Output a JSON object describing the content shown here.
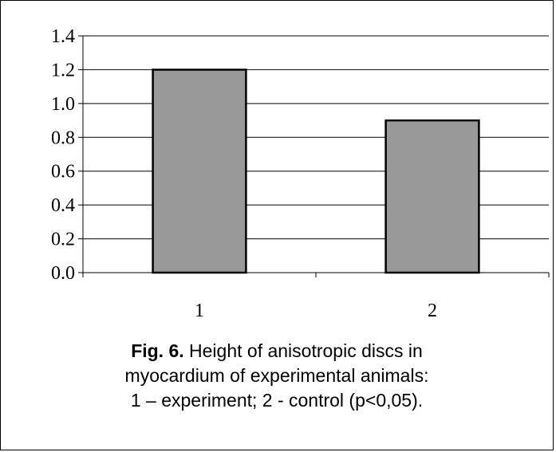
{
  "chart_data": {
    "type": "bar",
    "categories": [
      "1",
      "2"
    ],
    "values": [
      1.2,
      0.9
    ],
    "ylim": [
      0,
      1.4
    ],
    "yticks": [
      "0.0",
      "0.2",
      "0.4",
      "0.6",
      "0.8",
      "1.0",
      "1.2",
      "1.4"
    ],
    "grid": true,
    "legend": "none",
    "bar_color": "#999999",
    "title": "",
    "xlabel": "",
    "ylabel": ""
  },
  "caption": {
    "label": "Fig. 6.",
    "line1": " Height of anisotropic discs in",
    "line2": "myocardium of experimental animals:",
    "line3": "1 – experiment; 2 - control (p<0,05)."
  }
}
